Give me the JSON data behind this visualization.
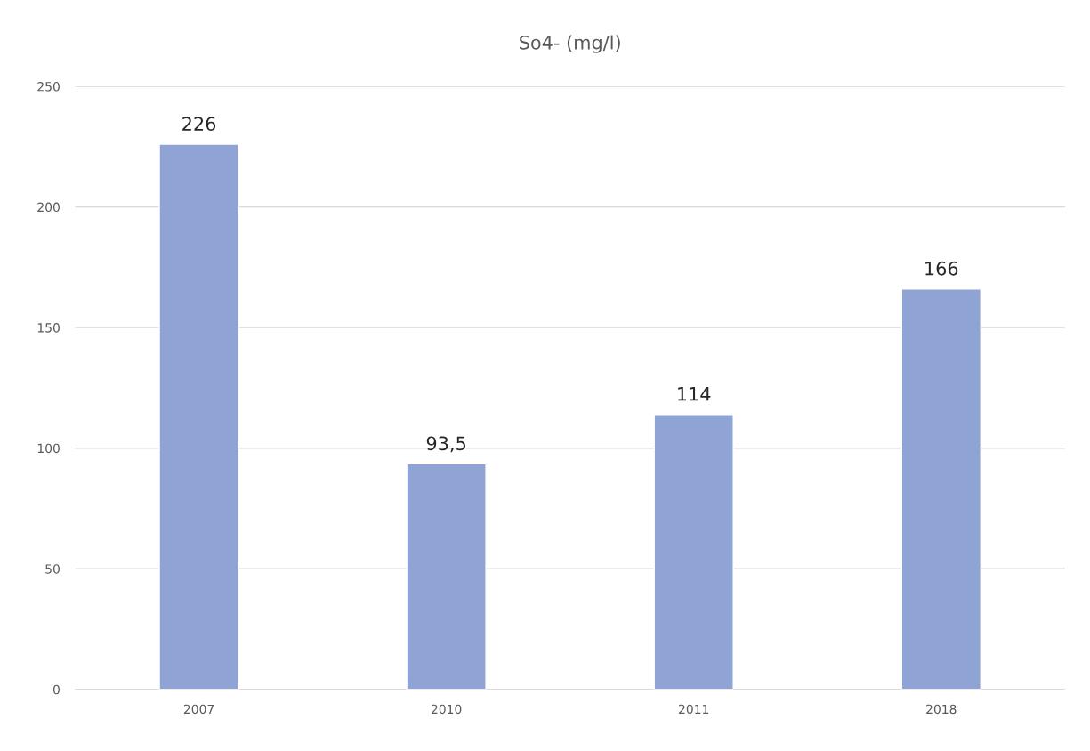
{
  "chart_data": {
    "type": "bar",
    "title": "So4- (mg/l)",
    "categories": [
      "2007",
      "2010",
      "2011",
      "2018"
    ],
    "values": [
      226,
      93.5,
      114,
      166
    ],
    "value_labels": [
      "226",
      "93,5",
      "114",
      "166"
    ],
    "color": "#8fa3d4",
    "ylim": [
      0,
      250
    ],
    "yticks": [
      0,
      50,
      100,
      150,
      200,
      250
    ],
    "grid": "y",
    "legend": false
  }
}
